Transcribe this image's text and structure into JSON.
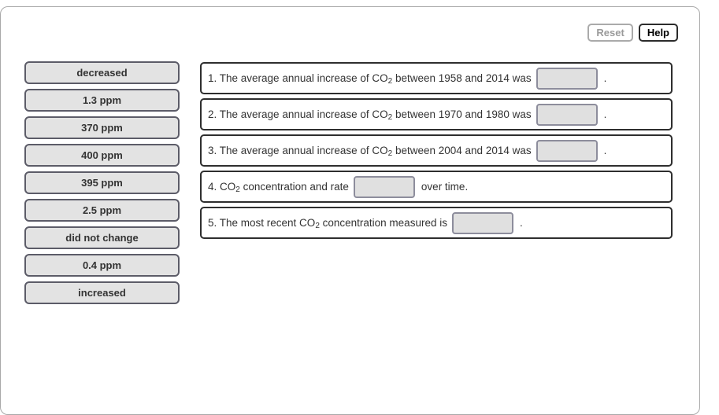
{
  "toolbar": {
    "reset_label": "Reset",
    "help_label": "Help"
  },
  "word_bank": {
    "items": [
      {
        "label": "decreased"
      },
      {
        "label": "1.3 ppm"
      },
      {
        "label": "370 ppm"
      },
      {
        "label": "400 ppm"
      },
      {
        "label": "395 ppm"
      },
      {
        "label": "2.5 ppm"
      },
      {
        "label": "did not change"
      },
      {
        "label": "0.4 ppm"
      },
      {
        "label": "increased"
      }
    ]
  },
  "statements": [
    {
      "pre": "1. The average annual increase of CO",
      "sub": "2",
      "mid": " between 1958 and 2014 was",
      "post": "."
    },
    {
      "pre": "2. The average annual increase of CO",
      "sub": "2",
      "mid": " between 1970 and 1980 was",
      "post": "."
    },
    {
      "pre": "3. The average annual increase of CO",
      "sub": "2",
      "mid": " between 2004 and 2014 was",
      "post": "."
    },
    {
      "pre": "4. CO",
      "sub": "2",
      "mid": " concentration and rate",
      "post": "over time."
    },
    {
      "pre": "5. The most recent CO",
      "sub": "2",
      "mid": " concentration measured is",
      "post": "."
    }
  ],
  "colors": {
    "chip_background": "#e3e3e3",
    "chip_border": "#5c5c68",
    "statement_border": "#2e2e2e",
    "blank_background": "#e0e0e0",
    "blank_border": "#8d8d9c",
    "container_border": "#a8a8a8",
    "reset_text": "#9a9a9a",
    "help_text": "#000000",
    "text": "#333333"
  }
}
